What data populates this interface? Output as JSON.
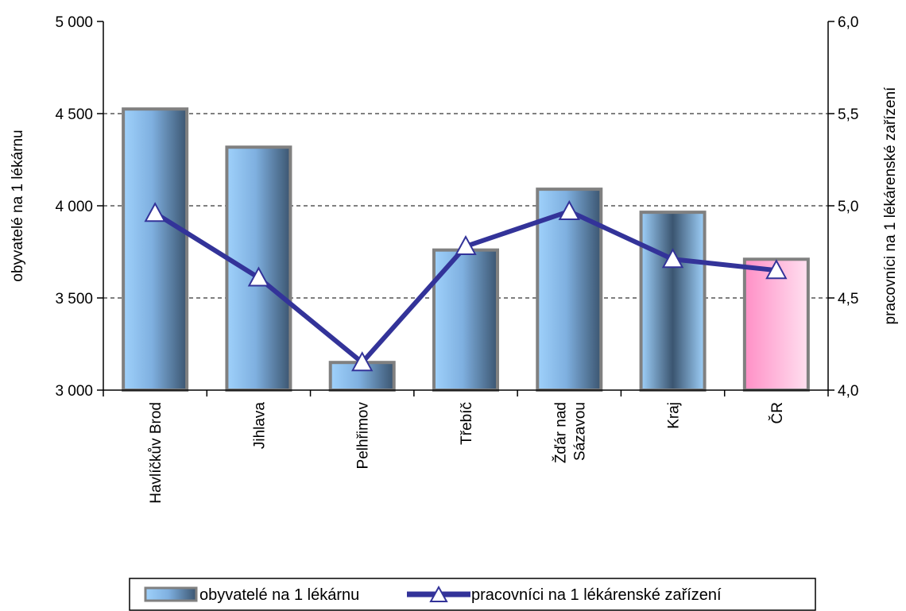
{
  "chart_data": {
    "type": "bar+line",
    "categories": [
      [
        "Havlíčkův Brod"
      ],
      [
        "Jihlava"
      ],
      [
        "Pelhřimov"
      ],
      [
        "Třebíč"
      ],
      [
        "Žďár nad",
        "Sázavou"
      ],
      [
        "Kraj"
      ],
      [
        "ČR"
      ]
    ],
    "series": [
      {
        "name": "obyvatelé na 1 lékárnu",
        "type": "bar",
        "axis": "left",
        "values": [
          4525,
          4318,
          3150,
          3760,
          4090,
          3965,
          3710
        ],
        "color": "#8fc4f0",
        "highlight_color": "#ff99cc",
        "highlight_index": 6
      },
      {
        "name": "pracovníci na 1 lékárenské zařízení",
        "type": "line",
        "axis": "right",
        "values": [
          4.96,
          4.61,
          4.15,
          4.78,
          4.97,
          4.71,
          4.65
        ],
        "color": "#333399",
        "marker": "triangle"
      }
    ],
    "y_left": {
      "label": "obyvatelé na 1 lékárnu",
      "min": 3000,
      "max": 5000,
      "ticks": [
        3000,
        3500,
        4000,
        4500,
        5000
      ],
      "tick_labels": [
        "3 000",
        "3 500",
        "4 000",
        "4 500",
        "5 000"
      ]
    },
    "y_right": {
      "label": "pracovníci na 1 lékárenské zařízení",
      "min": 4.0,
      "max": 6.0,
      "ticks": [
        4.0,
        4.5,
        5.0,
        5.5,
        6.0
      ],
      "tick_labels": [
        "4,0",
        "4,5",
        "5,0",
        "5,5",
        "6,0"
      ]
    },
    "grid": "horizontal-dashed",
    "legend_position": "bottom"
  }
}
